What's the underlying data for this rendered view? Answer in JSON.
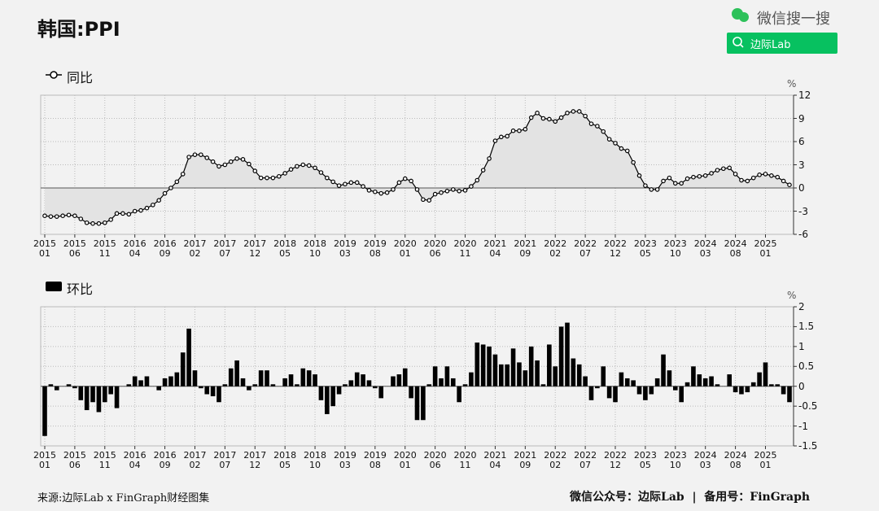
{
  "header": {
    "title": "韩国:PPI",
    "brand": "微信搜一搜",
    "search": "边际Lab"
  },
  "footer": {
    "source": "来源:边际Lab x FinGraph财经图集",
    "note": "微信公众号：边际Lab  |  备用号：FinGraph"
  },
  "chart_data": [
    {
      "type": "line",
      "y_label": "%",
      "grid": true,
      "ylim": [
        -6,
        12
      ],
      "yticks": [
        12,
        9,
        6,
        3,
        0,
        -3,
        -6
      ],
      "categories": [
        "2015\n01",
        null,
        null,
        null,
        null,
        "2015\n06",
        null,
        null,
        null,
        null,
        "2015\n11",
        null,
        null,
        null,
        null,
        "2016\n04",
        null,
        null,
        null,
        null,
        "2016\n09",
        null,
        null,
        null,
        null,
        "2017\n02",
        null,
        null,
        null,
        null,
        "2017\n07",
        null,
        null,
        null,
        null,
        "2017\n12",
        null,
        null,
        null,
        null,
        "2018\n05",
        null,
        null,
        null,
        null,
        "2018\n10",
        null,
        null,
        null,
        null,
        "2019\n03",
        null,
        null,
        null,
        null,
        "2019\n08",
        null,
        null,
        null,
        null,
        "2020\n01",
        null,
        null,
        null,
        null,
        "2020\n06",
        null,
        null,
        null,
        null,
        "2020\n11",
        null,
        null,
        null,
        null,
        "2021\n04",
        null,
        null,
        null,
        null,
        "2021\n09",
        null,
        null,
        null,
        null,
        "2022\n02",
        null,
        null,
        null,
        null,
        "2022\n07",
        null,
        null,
        null,
        null,
        "2022\n12",
        null,
        null,
        null,
        null,
        "2023\n05",
        null,
        null,
        null,
        null,
        "2023\n10",
        null,
        null,
        null,
        null,
        "2024\n03",
        null,
        null,
        null,
        null,
        "2024\n08",
        null,
        null,
        null,
        null,
        "2025\n01",
        null,
        null,
        null,
        null
      ],
      "series": [
        {
          "name": "同比",
          "color": "#000000",
          "fill": "#e3e3e3",
          "values": [
            -3.6,
            -3.7,
            -3.7,
            -3.6,
            -3.5,
            -3.6,
            -4.0,
            -4.5,
            -4.6,
            -4.6,
            -4.5,
            -4.1,
            -3.3,
            -3.3,
            -3.4,
            -3.0,
            -2.9,
            -2.6,
            -2.2,
            -1.6,
            -0.7,
            0.0,
            0.8,
            1.8,
            4.0,
            4.3,
            4.3,
            3.9,
            3.4,
            2.8,
            3.0,
            3.4,
            3.8,
            3.7,
            3.1,
            2.2,
            1.3,
            1.3,
            1.3,
            1.5,
            1.9,
            2.4,
            2.8,
            3.0,
            2.9,
            2.6,
            2.0,
            1.3,
            0.8,
            0.3,
            0.5,
            0.7,
            0.7,
            0.2,
            -0.3,
            -0.5,
            -0.7,
            -0.6,
            -0.2,
            0.7,
            1.2,
            0.9,
            -0.2,
            -1.5,
            -1.6,
            -0.8,
            -0.6,
            -0.4,
            -0.2,
            -0.4,
            -0.3,
            0.2,
            1.0,
            2.3,
            3.8,
            6.1,
            6.6,
            6.7,
            7.4,
            7.4,
            7.6,
            9.1,
            9.7,
            9.0,
            8.9,
            8.6,
            9.1,
            9.7,
            9.9,
            9.9,
            9.3,
            8.3,
            8.0,
            7.3,
            6.3,
            5.8,
            5.1,
            4.8,
            3.3,
            1.6,
            0.3,
            -0.2,
            -0.2,
            0.9,
            1.3,
            0.6,
            0.6,
            1.2,
            1.4,
            1.5,
            1.6,
            1.9,
            2.3,
            2.5,
            2.6,
            1.8,
            1.0,
            0.9,
            1.3,
            1.7,
            1.8,
            1.6,
            1.4,
            0.9,
            0.4
          ]
        }
      ]
    },
    {
      "type": "bar",
      "y_label": "%",
      "grid": true,
      "ylim": [
        -1.5,
        2
      ],
      "yticks": [
        2,
        1.5,
        1,
        0.5,
        0,
        -0.5,
        -1,
        -1.5
      ],
      "categories": [
        "2015\n01",
        null,
        null,
        null,
        null,
        "2015\n06",
        null,
        null,
        null,
        null,
        "2015\n11",
        null,
        null,
        null,
        null,
        "2016\n04",
        null,
        null,
        null,
        null,
        "2016\n09",
        null,
        null,
        null,
        null,
        "2017\n02",
        null,
        null,
        null,
        null,
        "2017\n07",
        null,
        null,
        null,
        null,
        "2017\n12",
        null,
        null,
        null,
        null,
        "2018\n05",
        null,
        null,
        null,
        null,
        "2018\n10",
        null,
        null,
        null,
        null,
        "2019\n03",
        null,
        null,
        null,
        null,
        "2019\n08",
        null,
        null,
        null,
        null,
        "2020\n01",
        null,
        null,
        null,
        null,
        "2020\n06",
        null,
        null,
        null,
        null,
        "2020\n11",
        null,
        null,
        null,
        null,
        "2021\n04",
        null,
        null,
        null,
        null,
        "2021\n09",
        null,
        null,
        null,
        null,
        "2022\n02",
        null,
        null,
        null,
        null,
        "2022\n07",
        null,
        null,
        null,
        null,
        "2022\n12",
        null,
        null,
        null,
        null,
        "2023\n05",
        null,
        null,
        null,
        null,
        "2023\n10",
        null,
        null,
        null,
        null,
        "2024\n03",
        null,
        null,
        null,
        null,
        "2024\n08",
        null,
        null,
        null,
        null,
        "2025\n01",
        null,
        null,
        null,
        null
      ],
      "series": [
        {
          "name": "环比",
          "color": "#000000",
          "values": [
            -1.25,
            0.05,
            -0.1,
            0.0,
            0.05,
            -0.05,
            -0.35,
            -0.6,
            -0.4,
            -0.65,
            -0.4,
            -0.2,
            -0.55,
            0.0,
            0.05,
            0.25,
            0.15,
            0.25,
            0.0,
            -0.1,
            0.2,
            0.25,
            0.35,
            0.85,
            1.45,
            0.4,
            -0.05,
            -0.2,
            -0.25,
            -0.4,
            0.05,
            0.45,
            0.65,
            0.2,
            -0.1,
            0.05,
            0.4,
            0.4,
            0.05,
            0.0,
            0.2,
            0.3,
            0.05,
            0.45,
            0.4,
            0.3,
            -0.35,
            -0.7,
            -0.5,
            -0.2,
            0.05,
            0.15,
            0.35,
            0.3,
            0.15,
            -0.05,
            -0.3,
            0.0,
            0.25,
            0.3,
            0.45,
            -0.3,
            -0.85,
            -0.85,
            0.05,
            0.5,
            0.2,
            0.5,
            0.2,
            -0.4,
            0.05,
            0.35,
            1.1,
            1.05,
            1.0,
            0.8,
            0.55,
            0.55,
            0.95,
            0.6,
            0.4,
            1.0,
            0.65,
            0.05,
            1.05,
            0.5,
            1.5,
            1.6,
            0.7,
            0.55,
            0.25,
            -0.35,
            -0.05,
            0.5,
            -0.3,
            -0.4,
            0.35,
            0.2,
            0.15,
            -0.2,
            -0.35,
            -0.2,
            0.2,
            0.8,
            0.4,
            -0.1,
            -0.4,
            0.1,
            0.5,
            0.3,
            0.2,
            0.25,
            0.05,
            0.0,
            0.3,
            -0.15,
            -0.2,
            -0.15,
            0.1,
            0.35,
            0.6,
            0.05,
            0.05,
            -0.2,
            -0.4
          ]
        }
      ]
    }
  ]
}
